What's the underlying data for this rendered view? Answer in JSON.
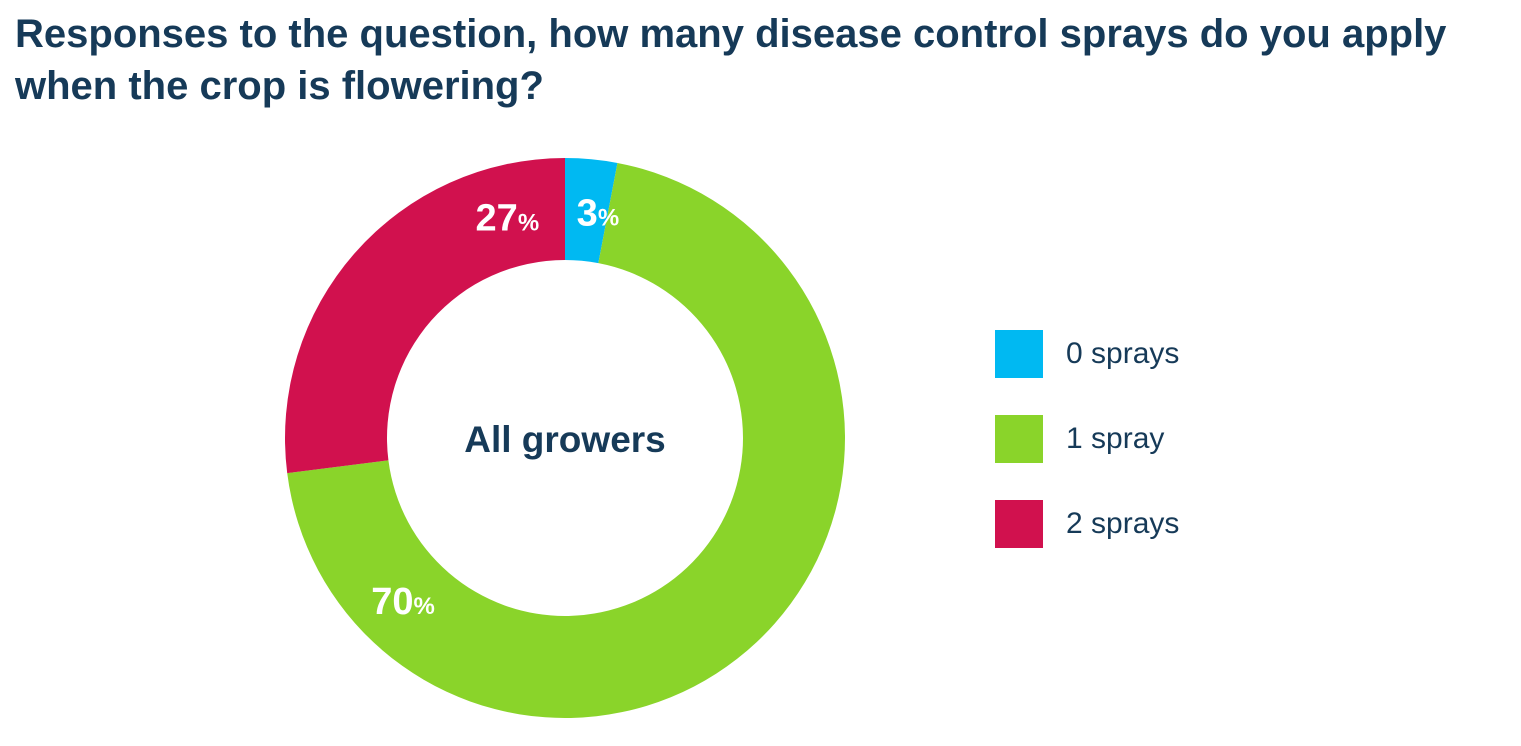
{
  "chart_data": {
    "type": "pie",
    "title": "Responses to the question, how many disease control sprays do you apply when the crop is flowering?",
    "center_label": "All growers",
    "percent_suffix": "%",
    "donut": true,
    "legend_position": "right",
    "slices": [
      {
        "label": "0 sprays",
        "value": 3,
        "display": "3",
        "color": "#00b9f2"
      },
      {
        "label": "1 spray",
        "value": 70,
        "display": "70",
        "color": "#8ad42a"
      },
      {
        "label": "2 sprays",
        "value": 27,
        "display": "27",
        "color": "#d1114e"
      }
    ]
  }
}
